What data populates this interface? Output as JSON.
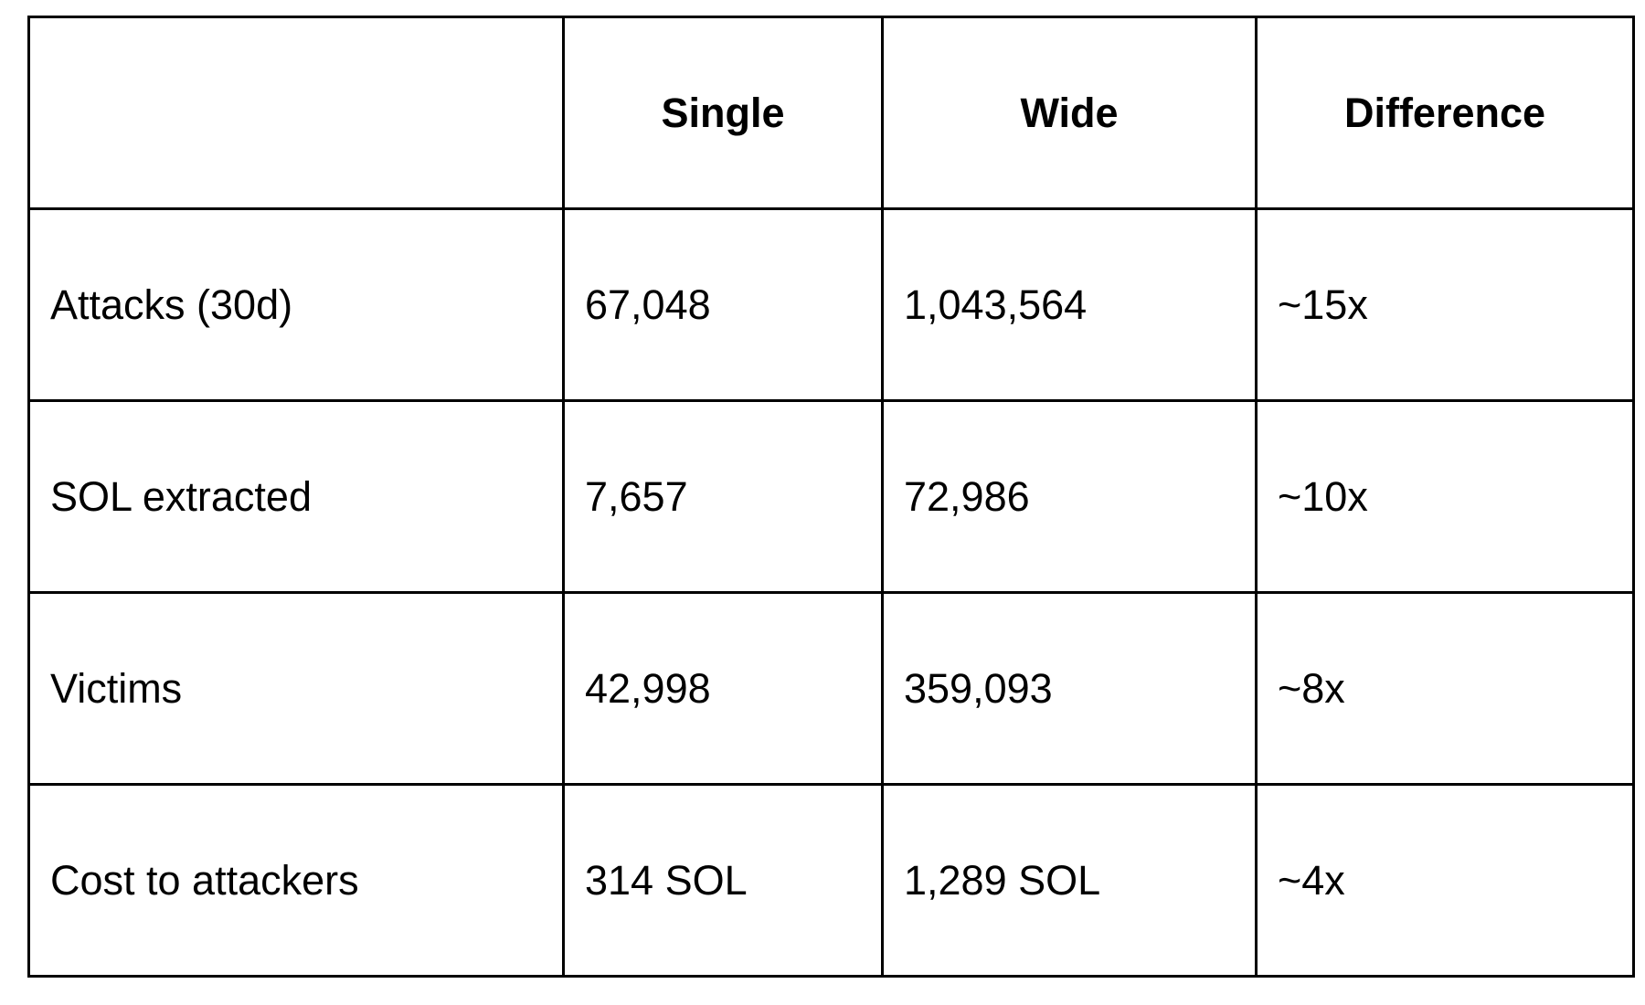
{
  "table": {
    "headers": [
      "",
      "Single",
      "Wide",
      "Difference"
    ],
    "rows": [
      [
        "Attacks (30d)",
        "67,048",
        "1,043,564",
        "~15x"
      ],
      [
        "SOL extracted",
        "7,657",
        "72,986",
        "~10x"
      ],
      [
        "Victims",
        "42,998",
        "359,093",
        "~8x"
      ],
      [
        "Cost to attackers",
        "314 SOL",
        "1,289 SOL",
        "~4x"
      ]
    ]
  }
}
